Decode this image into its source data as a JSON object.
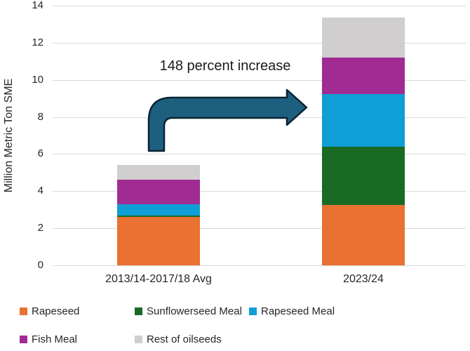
{
  "chart_data": {
    "type": "bar",
    "stacked": true,
    "title": "",
    "xlabel": "",
    "ylabel": "Million Metric Ton SME",
    "ylim": [
      0,
      14
    ],
    "yticks": [
      0,
      2,
      4,
      6,
      8,
      10,
      12,
      14
    ],
    "grid": true,
    "legend_position": "bottom",
    "categories": [
      "2013/14-2017/18 Avg",
      "2023/24"
    ],
    "series": [
      {
        "name": "Rapeseed",
        "color": "#E97132",
        "values": [
          2.6,
          3.25
        ]
      },
      {
        "name": "Sunflowerseed Meal",
        "color": "#196B24",
        "values": [
          0.1,
          3.15
        ]
      },
      {
        "name": "Rapeseed Meal",
        "color": "#0F9ED5",
        "values": [
          0.6,
          2.85
        ]
      },
      {
        "name": "Fish Meal",
        "color": "#A02B93",
        "values": [
          1.3,
          1.95
        ]
      },
      {
        "name": "Rest of oilseeds",
        "color": "#D0CECE",
        "values": [
          0.8,
          2.15
        ]
      }
    ],
    "annotation": {
      "text": "148 percent increase",
      "arrow_fill": "#1D5F7E",
      "arrow_outline": "#0A2433"
    }
  }
}
